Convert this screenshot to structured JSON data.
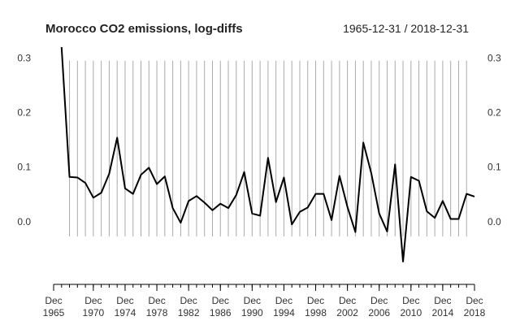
{
  "chart_data": {
    "type": "line",
    "title": "Morocco CO2 emissions, log-diffs",
    "date_range_label": "1965-12-31 / 2018-12-31",
    "x": [
      1966,
      1967,
      1968,
      1969,
      1970,
      1971,
      1972,
      1973,
      1974,
      1975,
      1976,
      1977,
      1978,
      1979,
      1980,
      1981,
      1982,
      1983,
      1984,
      1985,
      1986,
      1987,
      1988,
      1989,
      1990,
      1991,
      1992,
      1993,
      1994,
      1995,
      1996,
      1997,
      1998,
      1999,
      2000,
      2001,
      2002,
      2003,
      2004,
      2005,
      2006,
      2007,
      2008,
      2009,
      2010,
      2011,
      2012,
      2013,
      2014,
      2015,
      2016,
      2017,
      2018
    ],
    "series": [
      {
        "values": [
          0.32,
          0.082,
          0.081,
          0.071,
          0.044,
          0.053,
          0.088,
          0.154,
          0.061,
          0.051,
          0.086,
          0.099,
          0.069,
          0.083,
          0.025,
          -0.002,
          0.038,
          0.047,
          0.035,
          0.021,
          0.033,
          0.025,
          0.049,
          0.091,
          0.015,
          0.011,
          0.117,
          0.036,
          0.081,
          -0.005,
          0.018,
          0.026,
          0.051,
          0.051,
          0.003,
          0.084,
          0.027,
          -0.019,
          0.145,
          0.089,
          0.015,
          -0.018,
          0.105,
          -0.073,
          0.082,
          0.075,
          0.019,
          0.007,
          0.038,
          0.005,
          0.005,
          0.051,
          0.046
        ],
        "color": "#000000"
      }
    ],
    "ylim": [
      -0.1,
      0.32
    ],
    "y_ticks": [
      0.0,
      0.1,
      0.2,
      0.3
    ],
    "y_tick_labels": [
      "0.0",
      "0.1",
      "0.2",
      "0.3"
    ],
    "x_tick_years": [
      1965,
      1970,
      1974,
      1978,
      1982,
      1986,
      1990,
      1994,
      1998,
      2002,
      2006,
      2010,
      2014,
      2018
    ],
    "x_tick_labels": [
      {
        "line1": "Dec",
        "line2": "1965"
      },
      {
        "line1": "Dec",
        "line2": "1970"
      },
      {
        "line1": "Dec",
        "line2": "1974"
      },
      {
        "line1": "Dec",
        "line2": "1978"
      },
      {
        "line1": "Dec",
        "line2": "1982"
      },
      {
        "line1": "Dec",
        "line2": "1986"
      },
      {
        "line1": "Dec",
        "line2": "1990"
      },
      {
        "line1": "Dec",
        "line2": "1994"
      },
      {
        "line1": "Dec",
        "line2": "1998"
      },
      {
        "line1": "Dec",
        "line2": "2002"
      },
      {
        "line1": "Dec",
        "line2": "2006"
      },
      {
        "line1": "Dec",
        "line2": "2010"
      },
      {
        "line1": "Dec",
        "line2": "2014"
      },
      {
        "line1": "Dec",
        "line2": "2018"
      }
    ],
    "y_labels_both_sides": true,
    "vertical_grid": true,
    "horizontal_grid": false,
    "grid_color": "#aaaaaa",
    "line_color": "#000000"
  }
}
